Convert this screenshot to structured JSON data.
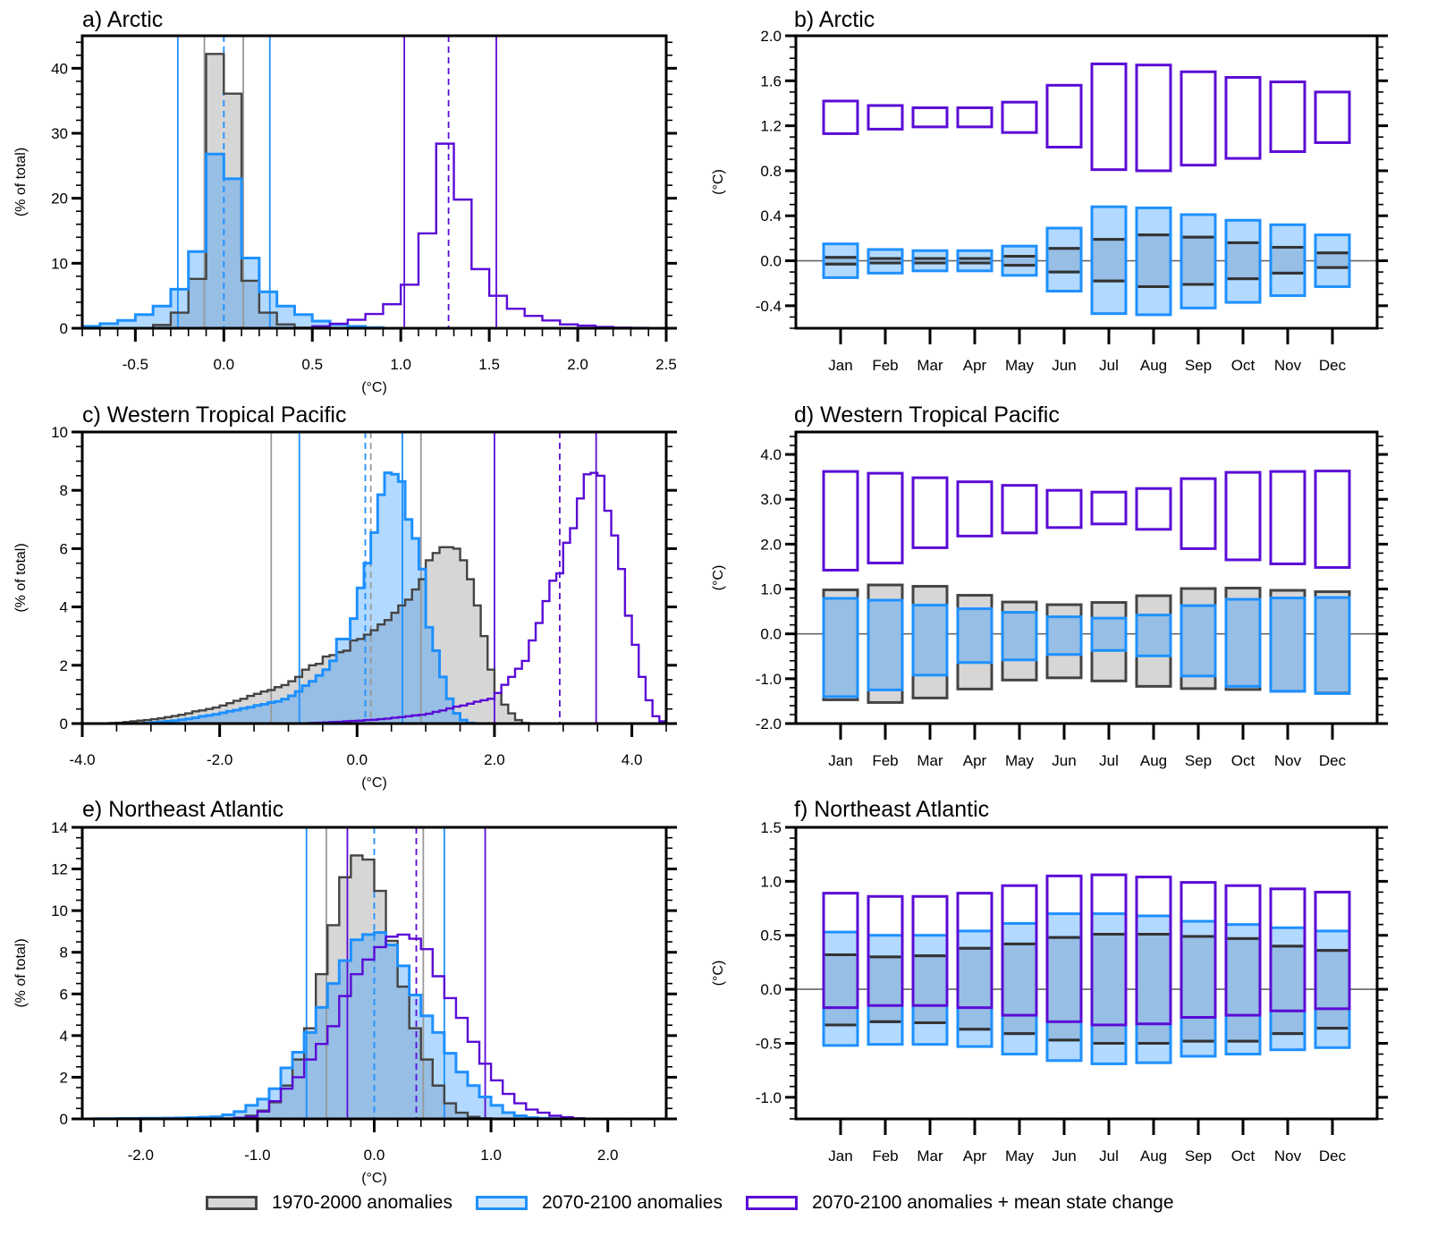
{
  "colors": {
    "hist": "#444444",
    "hist_fill": "#d6d6d6",
    "hist_line": "#999999",
    "future": "#1e90ff",
    "future_fill": "rgba(30,144,255,0.34)",
    "change": "#5a0bd6",
    "zero_line": "#666666"
  },
  "legend": [
    {
      "label": "1970-2000 anomalies",
      "key": "hist"
    },
    {
      "label": "2070-2100 anomalies",
      "key": "future"
    },
    {
      "label": "2070-2100 anomalies + mean state change",
      "key": "change"
    }
  ],
  "chart_data": [
    {
      "id": "a",
      "type": "histogram",
      "title": "a) Arctic",
      "xlabel": "(°C)",
      "ylabel": "(% of total)",
      "xlim": [
        -0.8,
        2.5
      ],
      "ylim": [
        0,
        45
      ],
      "xticks": [
        -0.5,
        0.0,
        0.5,
        1.0,
        1.5,
        2.0,
        2.5
      ],
      "xtick_labels": [
        "-0.5",
        "0.0",
        "0.5",
        "1.0",
        "1.5",
        "2.0",
        "2.5"
      ],
      "xminor": 0.1,
      "yticks": [
        0,
        10,
        20,
        30,
        40
      ],
      "ytick_labels": [
        "0",
        "10",
        "20",
        "30",
        "40"
      ],
      "yminor": 2,
      "bin_width": 0.1,
      "series": [
        {
          "name": "1970-2000 anomalies",
          "key": "hist",
          "bin_start": -0.8,
          "values": [
            0,
            0,
            0,
            0,
            0.5,
            2.4,
            7.6,
            42.2,
            36.1,
            7.3,
            2.4,
            0.6,
            0.1,
            0,
            0
          ]
        },
        {
          "name": "2070-2100 anomalies",
          "key": "future",
          "bin_start": -0.8,
          "values": [
            0.3,
            0.7,
            1.2,
            2.1,
            3.4,
            6.0,
            11.8,
            26.8,
            23.0,
            10.8,
            5.6,
            3.4,
            2.1,
            1.1,
            0.6,
            0.3,
            0.1,
            0
          ]
        },
        {
          "name": "2070-2100 anomalies + mean state change",
          "key": "change",
          "bin_start": 0.5,
          "values": [
            0.3,
            0.7,
            1.3,
            2.2,
            3.7,
            6.7,
            14.6,
            28.4,
            19.8,
            9.1,
            5.0,
            3.0,
            1.9,
            1.2,
            0.6,
            0.4,
            0.2,
            0.1,
            0.05,
            0
          ]
        }
      ],
      "vlines": [
        {
          "key": "hist",
          "x": -0.11,
          "style": "solid"
        },
        {
          "key": "hist",
          "x": 0.11,
          "style": "solid"
        },
        {
          "key": "future",
          "x": -0.26,
          "style": "solid"
        },
        {
          "key": "future",
          "x": 0.26,
          "style": "solid"
        },
        {
          "key": "future",
          "x": 0.0,
          "style": "dashed"
        },
        {
          "key": "change",
          "x": 1.02,
          "style": "solid"
        },
        {
          "key": "change",
          "x": 1.54,
          "style": "solid"
        },
        {
          "key": "change",
          "x": 1.27,
          "style": "dashed"
        }
      ]
    },
    {
      "id": "b",
      "type": "box",
      "title": "b) Arctic",
      "ylabel": "(°C)",
      "categories": [
        "Jan",
        "Feb",
        "Mar",
        "Apr",
        "May",
        "Jun",
        "Jul",
        "Aug",
        "Sep",
        "Oct",
        "Nov",
        "Dec"
      ],
      "ylim": [
        -0.6,
        2.0
      ],
      "yticks": [
        -0.4,
        0.0,
        0.4,
        0.8,
        1.2,
        1.6,
        2.0
      ],
      "ytick_labels": [
        "-0.4",
        "0.0",
        "0.4",
        "0.8",
        "1.2",
        "1.6",
        "2.0"
      ],
      "yminor": 0.1,
      "series": [
        {
          "name": "1970-2000 anomalies",
          "key": "hist",
          "low": [
            -0.03,
            -0.02,
            -0.02,
            -0.02,
            -0.04,
            -0.1,
            -0.18,
            -0.23,
            -0.21,
            -0.16,
            -0.11,
            -0.06
          ],
          "high": [
            0.03,
            0.02,
            0.02,
            0.02,
            0.04,
            0.11,
            0.19,
            0.23,
            0.21,
            0.16,
            0.12,
            0.07
          ]
        },
        {
          "name": "2070-2100 anomalies",
          "key": "future",
          "low": [
            -0.15,
            -0.11,
            -0.09,
            -0.09,
            -0.13,
            -0.27,
            -0.47,
            -0.48,
            -0.42,
            -0.37,
            -0.31,
            -0.23
          ],
          "high": [
            0.15,
            0.1,
            0.09,
            0.09,
            0.13,
            0.29,
            0.48,
            0.47,
            0.41,
            0.36,
            0.32,
            0.23
          ]
        },
        {
          "name": "2070-2100 anomalies + mean state change",
          "key": "change",
          "low": [
            1.13,
            1.17,
            1.19,
            1.19,
            1.14,
            1.01,
            0.81,
            0.8,
            0.85,
            0.91,
            0.97,
            1.05
          ],
          "high": [
            1.42,
            1.38,
            1.36,
            1.36,
            1.41,
            1.56,
            1.75,
            1.74,
            1.68,
            1.63,
            1.59,
            1.5
          ]
        }
      ]
    },
    {
      "id": "c",
      "type": "histogram",
      "title": "c) Western Tropical Pacific",
      "xlabel": "(°C)",
      "ylabel": "(% of total)",
      "xlim": [
        -4.0,
        4.5
      ],
      "ylim": [
        0,
        10
      ],
      "xticks": [
        -4.0,
        -2.0,
        0.0,
        2.0,
        4.0
      ],
      "xtick_labels": [
        "-4.0",
        "-2.0",
        "0.0",
        "2.0",
        "4.0"
      ],
      "xminor": 0.5,
      "yticks": [
        0,
        2,
        4,
        6,
        8,
        10
      ],
      "ytick_labels": [
        "0",
        "2",
        "4",
        "6",
        "8",
        "10"
      ],
      "yminor": 0.5,
      "bin_width": 0.1,
      "series": [
        {
          "name": "1970-2000 anomalies",
          "key": "hist",
          "bin_start": -3.6,
          "values": [
            0.02,
            0.03,
            0.05,
            0.08,
            0.1,
            0.12,
            0.15,
            0.18,
            0.22,
            0.26,
            0.3,
            0.35,
            0.42,
            0.45,
            0.5,
            0.55,
            0.62,
            0.7,
            0.78,
            0.85,
            0.95,
            1.02,
            1.1,
            1.15,
            1.25,
            1.32,
            1.45,
            1.6,
            1.85,
            2.0,
            2.05,
            2.3,
            2.35,
            2.45,
            2.5,
            2.85,
            2.9,
            3.05,
            3.2,
            3.4,
            3.55,
            3.8,
            4.05,
            4.25,
            4.6,
            4.95,
            5.6,
            5.85,
            6.05,
            6.05,
            6.0,
            5.6,
            4.95,
            4.05,
            3.0,
            1.85,
            1.05,
            0.65,
            0.35,
            0.12,
            0.02
          ]
        },
        {
          "name": "2070-2100 anomalies",
          "key": "future",
          "bin_start": -3.1,
          "values": [
            0.02,
            0.04,
            0.06,
            0.08,
            0.1,
            0.13,
            0.16,
            0.2,
            0.25,
            0.28,
            0.32,
            0.37,
            0.42,
            0.46,
            0.52,
            0.56,
            0.62,
            0.66,
            0.72,
            0.76,
            0.84,
            0.95,
            1.1,
            1.3,
            1.45,
            1.65,
            1.85,
            2.15,
            2.9,
            2.9,
            3.6,
            4.65,
            5.5,
            6.55,
            7.85,
            8.6,
            8.55,
            8.3,
            7.0,
            6.35,
            5.3,
            3.3,
            2.5,
            1.6,
            0.85,
            0.35,
            0.12,
            0.02
          ]
        },
        {
          "name": "2070-2100 anomalies + mean state change",
          "key": "change",
          "bin_start": -0.8,
          "values": [
            0.01,
            0.02,
            0.03,
            0.04,
            0.05,
            0.06,
            0.08,
            0.09,
            0.1,
            0.12,
            0.13,
            0.15,
            0.17,
            0.2,
            0.22,
            0.25,
            0.28,
            0.3,
            0.34,
            0.4,
            0.45,
            0.52,
            0.58,
            0.62,
            0.68,
            0.75,
            0.8,
            0.85,
            1.05,
            1.33,
            1.6,
            1.88,
            2.15,
            2.85,
            3.45,
            4.2,
            4.9,
            5.15,
            6.2,
            6.7,
            7.72,
            8.55,
            8.6,
            8.5,
            7.3,
            6.45,
            5.3,
            3.7,
            2.7,
            1.6,
            0.8,
            0.25,
            0.08,
            0.03,
            0.01
          ]
        }
      ],
      "vlines": [
        {
          "key": "hist",
          "x": -1.25,
          "style": "solid"
        },
        {
          "key": "hist",
          "x": 0.93,
          "style": "solid"
        },
        {
          "key": "hist",
          "x": 0.2,
          "style": "dashed"
        },
        {
          "key": "future",
          "x": -0.84,
          "style": "solid"
        },
        {
          "key": "future",
          "x": 0.66,
          "style": "solid"
        },
        {
          "key": "future",
          "x": 0.12,
          "style": "dashed"
        },
        {
          "key": "change",
          "x": 2.0,
          "style": "solid"
        },
        {
          "key": "change",
          "x": 3.48,
          "style": "solid"
        },
        {
          "key": "change",
          "x": 2.95,
          "style": "dashed"
        }
      ]
    },
    {
      "id": "d",
      "type": "box",
      "title": "d) Western Tropical Pacific",
      "ylabel": "(°C)",
      "categories": [
        "Jan",
        "Feb",
        "Mar",
        "Apr",
        "May",
        "Jun",
        "Jul",
        "Aug",
        "Sep",
        "Oct",
        "Nov",
        "Dec"
      ],
      "ylim": [
        -2.0,
        4.5
      ],
      "yticks": [
        -2.0,
        -1.0,
        0.0,
        1.0,
        2.0,
        3.0,
        4.0
      ],
      "ytick_labels": [
        "-2.0",
        "-1.0",
        "0.0",
        "1.0",
        "2.0",
        "3.0",
        "4.0"
      ],
      "yminor": 0.2,
      "series": [
        {
          "name": "1970-2000 anomalies",
          "key": "hist",
          "low": [
            -1.47,
            -1.53,
            -1.43,
            -1.23,
            -1.03,
            -0.98,
            -1.05,
            -1.17,
            -1.22,
            -1.24,
            -1.28,
            -1.32
          ],
          "high": [
            0.98,
            1.09,
            1.06,
            0.86,
            0.71,
            0.65,
            0.7,
            0.85,
            1.01,
            1.02,
            0.97,
            0.94
          ]
        },
        {
          "name": "2070-2100 anomalies",
          "key": "future",
          "low": [
            -1.4,
            -1.25,
            -0.92,
            -0.64,
            -0.58,
            -0.46,
            -0.37,
            -0.49,
            -0.94,
            -1.17,
            -1.28,
            -1.33
          ],
          "high": [
            0.79,
            0.75,
            0.64,
            0.56,
            0.48,
            0.38,
            0.35,
            0.42,
            0.63,
            0.77,
            0.8,
            0.81
          ]
        },
        {
          "name": "2070-2100 anomalies + mean state change",
          "key": "change",
          "low": [
            1.42,
            1.58,
            1.92,
            2.18,
            2.25,
            2.37,
            2.45,
            2.33,
            1.9,
            1.65,
            1.56,
            1.48
          ],
          "high": [
            3.62,
            3.58,
            3.48,
            3.39,
            3.31,
            3.2,
            3.16,
            3.24,
            3.46,
            3.6,
            3.62,
            3.63
          ]
        }
      ]
    },
    {
      "id": "e",
      "type": "histogram",
      "title": "e) Northeast Atlantic",
      "xlabel": "(°C)",
      "ylabel": "(% of total)",
      "xlim": [
        -2.5,
        2.5
      ],
      "ylim": [
        0,
        14
      ],
      "xticks": [
        -2.0,
        -1.0,
        0.0,
        1.0,
        2.0
      ],
      "xtick_labels": [
        "-2.0",
        "-1.0",
        "0.0",
        "1.0",
        "2.0"
      ],
      "xminor": 0.2,
      "yticks": [
        0,
        2,
        4,
        6,
        8,
        10,
        12,
        14
      ],
      "ytick_labels": [
        "0",
        "2",
        "4",
        "6",
        "8",
        "10",
        "12",
        "14"
      ],
      "yminor": 0.5,
      "bin_width": 0.1,
      "series": [
        {
          "name": "1970-2000 anomalies",
          "key": "hist",
          "bin_start": -1.3,
          "values": [
            0.02,
            0.05,
            0.15,
            0.4,
            0.8,
            1.6,
            2.85,
            4.35,
            6.95,
            9.3,
            11.6,
            12.65,
            12.45,
            10.95,
            8.55,
            6.35,
            4.35,
            2.85,
            1.6,
            0.75,
            0.3,
            0.1,
            0.03
          ]
        },
        {
          "name": "2070-2100 anomalies",
          "key": "future",
          "bin_start": -2.4,
          "values": [
            0.01,
            0.01,
            0.02,
            0.02,
            0.03,
            0.03,
            0.04,
            0.05,
            0.06,
            0.08,
            0.1,
            0.2,
            0.35,
            0.65,
            0.95,
            1.45,
            2.45,
            3.2,
            4.15,
            5.35,
            6.5,
            7.6,
            8.6,
            8.85,
            8.95,
            8.35,
            7.35,
            5.95,
            4.95,
            4.15,
            3.15,
            2.25,
            1.6,
            1.05,
            0.65,
            0.3,
            0.15,
            0.06,
            0.03,
            0.01
          ]
        },
        {
          "name": "2070-2100 anomalies + mean state change",
          "key": "change",
          "bin_start": -1.2,
          "values": [
            0.05,
            0.1,
            0.35,
            0.85,
            1.45,
            2.0,
            2.85,
            3.6,
            4.45,
            5.9,
            6.95,
            7.65,
            8.25,
            8.75,
            8.85,
            8.65,
            8.15,
            6.85,
            5.8,
            4.85,
            3.7,
            2.65,
            1.85,
            1.2,
            0.75,
            0.45,
            0.3,
            0.15,
            0.08,
            0.03,
            0.01
          ]
        }
      ],
      "vlines": [
        {
          "key": "hist",
          "x": -0.41,
          "style": "solid"
        },
        {
          "key": "hist",
          "x": 0.42,
          "style": "solid"
        },
        {
          "key": "future",
          "x": -0.58,
          "style": "solid"
        },
        {
          "key": "future",
          "x": 0.6,
          "style": "solid"
        },
        {
          "key": "future",
          "x": 0.0,
          "style": "dashed"
        },
        {
          "key": "change",
          "x": -0.23,
          "style": "solid"
        },
        {
          "key": "change",
          "x": 0.95,
          "style": "solid"
        },
        {
          "key": "change",
          "x": 0.36,
          "style": "dashed"
        }
      ]
    },
    {
      "id": "f",
      "type": "box",
      "title": "f) Northeast Atlantic",
      "ylabel": "(°C)",
      "categories": [
        "Jan",
        "Feb",
        "Mar",
        "Apr",
        "May",
        "Jun",
        "Jul",
        "Aug",
        "Sep",
        "Oct",
        "Nov",
        "Dec"
      ],
      "ylim": [
        -1.2,
        1.5
      ],
      "yticks": [
        -1.0,
        -0.5,
        0.0,
        0.5,
        1.0,
        1.5
      ],
      "ytick_labels": [
        "-1.0",
        "-0.5",
        "0.0",
        "0.5",
        "1.0",
        "1.5"
      ],
      "yminor": 0.1,
      "series": [
        {
          "name": "1970-2000 anomalies",
          "key": "hist",
          "low": [
            -0.33,
            -0.3,
            -0.31,
            -0.37,
            -0.41,
            -0.47,
            -0.5,
            -0.5,
            -0.48,
            -0.48,
            -0.41,
            -0.36
          ],
          "high": [
            0.32,
            0.3,
            0.31,
            0.38,
            0.42,
            0.48,
            0.51,
            0.51,
            0.49,
            0.47,
            0.4,
            0.36
          ]
        },
        {
          "name": "2070-2100 anomalies",
          "key": "future",
          "low": [
            -0.52,
            -0.51,
            -0.51,
            -0.53,
            -0.6,
            -0.66,
            -0.69,
            -0.68,
            -0.62,
            -0.6,
            -0.56,
            -0.54
          ],
          "high": [
            0.53,
            0.5,
            0.5,
            0.54,
            0.61,
            0.7,
            0.7,
            0.68,
            0.63,
            0.6,
            0.57,
            0.54
          ]
        },
        {
          "name": "2070-2100 anomalies + mean state change",
          "key": "change",
          "low": [
            -0.17,
            -0.15,
            -0.15,
            -0.17,
            -0.24,
            -0.3,
            -0.33,
            -0.32,
            -0.26,
            -0.24,
            -0.2,
            -0.18
          ],
          "high": [
            0.89,
            0.86,
            0.86,
            0.89,
            0.96,
            1.05,
            1.06,
            1.04,
            0.99,
            0.96,
            0.93,
            0.9
          ]
        }
      ]
    }
  ]
}
